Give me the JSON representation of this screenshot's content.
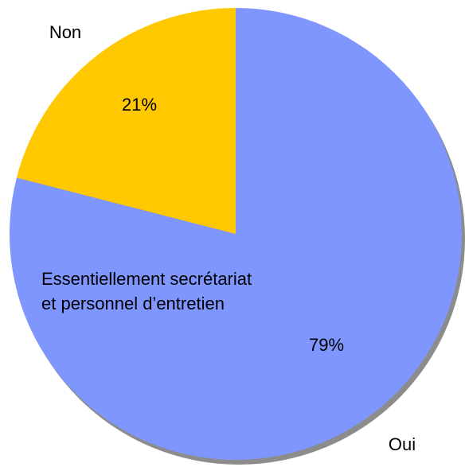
{
  "chart_data": {
    "type": "pie",
    "categories": [
      "Oui",
      "Non"
    ],
    "values": [
      79,
      21
    ],
    "value_labels": [
      "79%",
      "21%"
    ],
    "colors": [
      "#7f96ff",
      "#ffc800"
    ],
    "annotation": [
      "Essentiellement secrétariat",
      "et personnel d’entretien"
    ]
  }
}
